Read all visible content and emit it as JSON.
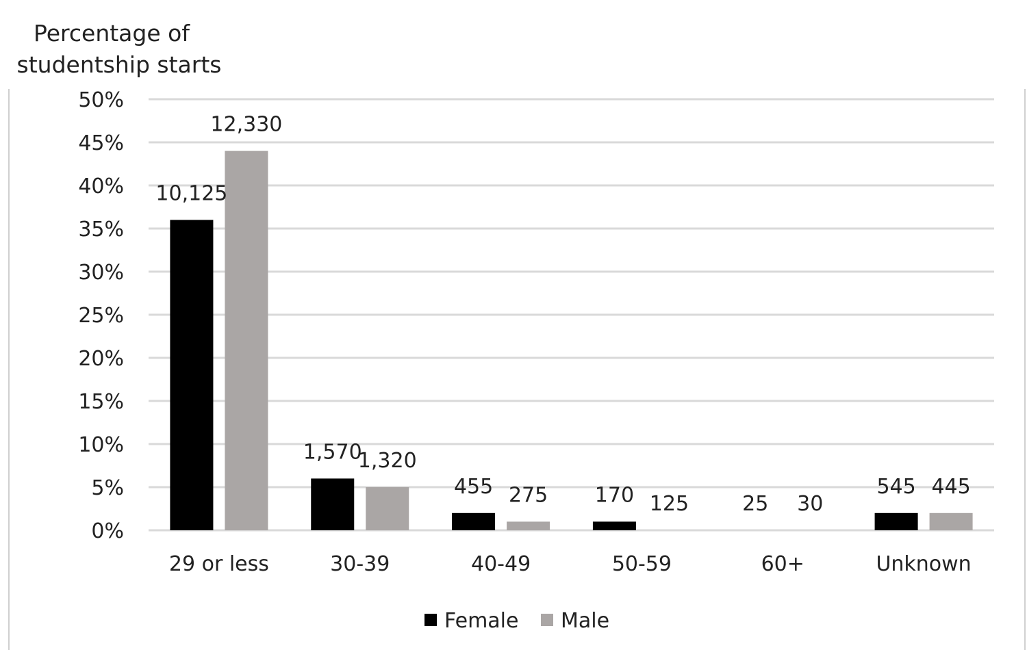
{
  "chart_data": {
    "type": "bar",
    "ylabel": "Percentage of studentship starts",
    "ylabel_lines": [
      "Percentage of",
      "studentship starts"
    ],
    "categories": [
      "29 or less",
      "30-39",
      "40-49",
      "50-59",
      "60+",
      "Unknown"
    ],
    "ylim": [
      0,
      50
    ],
    "yticks": [
      0,
      5,
      10,
      15,
      20,
      25,
      30,
      35,
      40,
      45,
      50
    ],
    "ytick_labels": [
      "0%",
      "5%",
      "10%",
      "15%",
      "20%",
      "25%",
      "30%",
      "35%",
      "40%",
      "45%",
      "50%"
    ],
    "grid": true,
    "legend_position": "bottom",
    "series": [
      {
        "name": "Female",
        "color": "#000000",
        "values": [
          36,
          6,
          2,
          1,
          0,
          2
        ],
        "data_labels": [
          "10,125",
          "1,570",
          "455",
          "170",
          "25",
          "545"
        ]
      },
      {
        "name": "Male",
        "color": "#aaa6a5",
        "values": [
          44,
          5,
          1,
          0,
          0,
          2
        ],
        "data_labels": [
          "12,330",
          "1,320",
          "275",
          "125",
          "30",
          "445"
        ]
      }
    ]
  }
}
